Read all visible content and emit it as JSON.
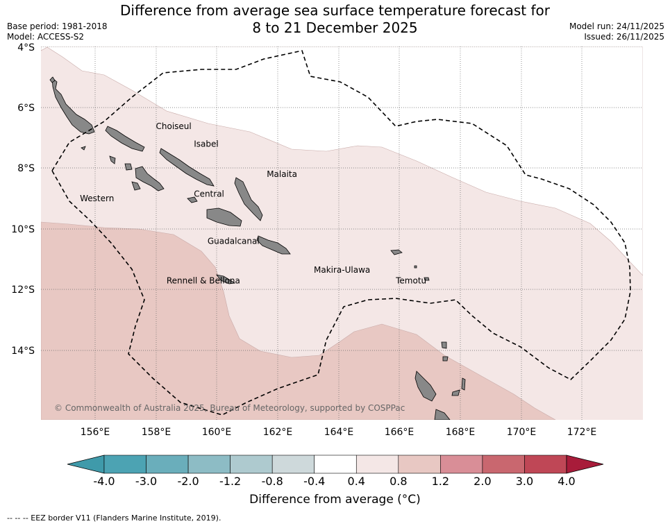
{
  "title_line1": "Difference from average sea surface temperature forecast for",
  "title_line2": "8 to 21 December 2025",
  "base_period": "Base period: 1981-2018",
  "model": "Model: ACCESS-S2",
  "model_run": "Model run: 24/11/2025",
  "issued": "Issued: 26/11/2025",
  "lat_ticks": [
    "4°S",
    "6°S",
    "8°S",
    "10°S",
    "12°S",
    "14°S"
  ],
  "lon_ticks": [
    "156°E",
    "158°E",
    "160°E",
    "162°E",
    "164°E",
    "166°E",
    "168°E",
    "170°E",
    "172°E"
  ],
  "regions": [
    {
      "name": "Choiseul",
      "lon": 158.0,
      "lat": -6.72
    },
    {
      "name": "Isabel",
      "lon": 159.25,
      "lat": -7.3
    },
    {
      "name": "Malaita",
      "lon": 161.65,
      "lat": -8.3
    },
    {
      "name": "Western",
      "lon": 155.5,
      "lat": -9.1
    },
    {
      "name": "Central",
      "lon": 159.25,
      "lat": -8.95
    },
    {
      "name": "Guadalcanal",
      "lon": 159.7,
      "lat": -10.5
    },
    {
      "name": "Makira-Ulawa",
      "lon": 163.2,
      "lat": -11.45
    },
    {
      "name": "Rennell & Bellona",
      "lon": 158.35,
      "lat": -11.8
    },
    {
      "name": "Temotu",
      "lon": 165.9,
      "lat": -11.8
    }
  ],
  "copyright": "© Commonwealth of Australia 2025, Bureau of Meteorology, supported by COSPPac",
  "colorbar": {
    "ticks": [
      "-4.0",
      "-3.0",
      "-2.0",
      "-1.2",
      "-0.8",
      "-0.4",
      "0.4",
      "0.8",
      "1.2",
      "2.0",
      "3.0",
      "4.0"
    ],
    "colors": [
      "#3f9aaa",
      "#4ca3b3",
      "#6aaebb",
      "#8dbcc5",
      "#aecacf",
      "#ced9db",
      "#ffffff",
      "#f4e7e6",
      "#e8c8c3",
      "#d98e97",
      "#c9676f",
      "#bf4756",
      "#a81c3a"
    ],
    "label": "Difference from average (°C)"
  },
  "footer": "--  --  -- EEZ border V11 (Flanders Marine Institute, 2019)."
}
